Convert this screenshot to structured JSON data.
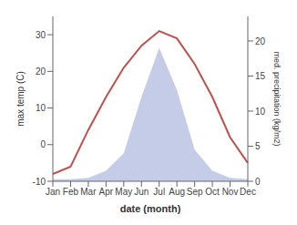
{
  "chart_data": {
    "type": "line",
    "categories": [
      "Jan",
      "Feb",
      "Mar",
      "Apr",
      "May",
      "Jun",
      "Jul",
      "Aug",
      "Sep",
      "Oct",
      "Nov",
      "Dec"
    ],
    "series": [
      {
        "type": "area",
        "color": "#c5cce8",
        "axis": "y2",
        "values": [
          0.3,
          0.3,
          0.5,
          1.5,
          4.0,
          12.0,
          19.0,
          13.0,
          4.5,
          1.5,
          0.5,
          0.3
        ]
      },
      {
        "type": "line",
        "color": "#c0504d",
        "values": [
          -8,
          -6,
          4,
          13,
          21,
          27,
          31,
          29,
          22,
          13,
          2,
          -5
        ]
      }
    ],
    "xlabel": "date (month)",
    "ylabel": "max temp (C)",
    "y2label": "med. precipitation (kg/m2)",
    "ylim": [
      -10,
      35
    ],
    "yticks": [
      -10,
      0,
      10,
      20,
      30
    ],
    "y2lim": [
      0,
      23.5
    ],
    "y2ticks": [
      0,
      5,
      10,
      15,
      20
    ],
    "grid": false
  }
}
